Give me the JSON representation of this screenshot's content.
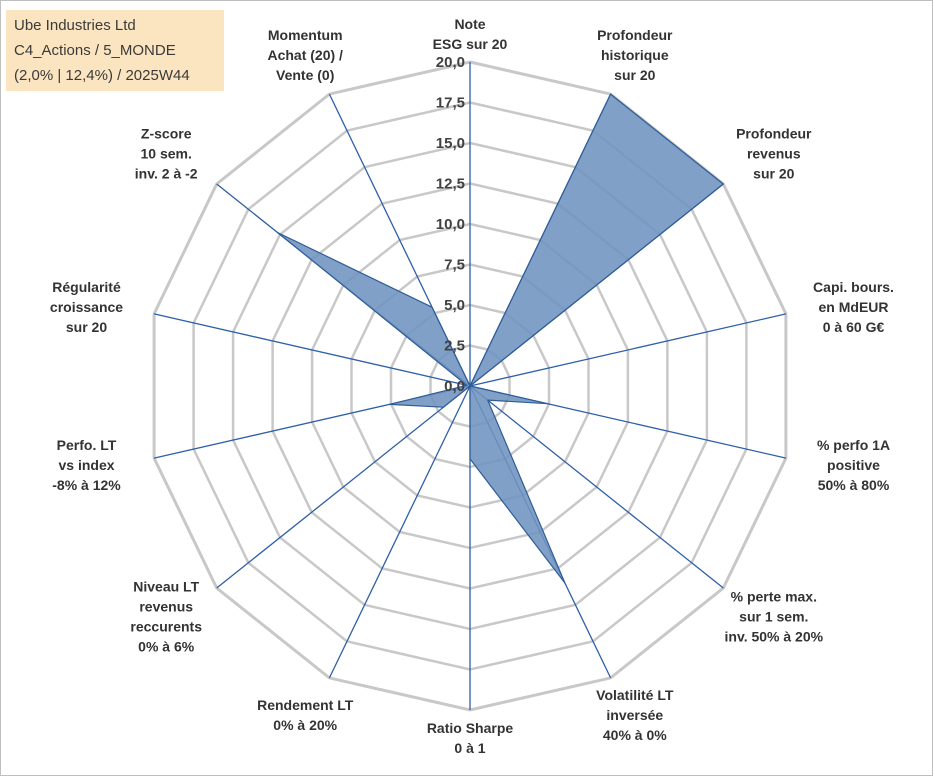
{
  "info_box": {
    "line1": "Ube Industries Ltd",
    "line2": "C4_Actions / 5_MONDE",
    "line3": "(2,0% | 12,4%) / 2025W44"
  },
  "chart_data": {
    "type": "radar",
    "title": "",
    "axis_range": [
      0,
      20
    ],
    "tick_step": 2.5,
    "tick_labels": [
      "0,0",
      "2,5",
      "5,0",
      "7,5",
      "10,0",
      "12,5",
      "15,0",
      "17,5",
      "20,0"
    ],
    "grid": true,
    "fill_color": "#6f93bf",
    "fill_edge_color": "#2f5d97",
    "spoke_color": "#2e5fa8",
    "grid_color": "#c8c8c8",
    "axes": [
      {
        "label": [
          "Note",
          "ESG sur 20"
        ],
        "value": 0
      },
      {
        "label": [
          "Profondeur",
          "historique",
          "sur 20"
        ],
        "value": 20
      },
      {
        "label": [
          "Profondeur",
          "revenus",
          "sur 20"
        ],
        "value": 20
      },
      {
        "label": [
          "Capi. bours.",
          "en MdEUR",
          "0 à 60 G€"
        ],
        "value": 0
      },
      {
        "label": [
          "% perfo 1A",
          "positive",
          "50% à 80%"
        ],
        "value": 4.9
      },
      {
        "label": [
          "% perte max.",
          "sur 1 sem.",
          "inv. 50% à 20%"
        ],
        "value": 1.4
      },
      {
        "label": [
          "Volatilité LT",
          "inversée",
          "40% à 0%"
        ],
        "value": 13.5
      },
      {
        "label": [
          "Ratio Sharpe",
          "0 à 1"
        ],
        "value": 4.5
      },
      {
        "label": [
          "Rendement LT",
          "0% à 20%"
        ],
        "value": 0
      },
      {
        "label": [
          "Niveau LT",
          "revenus",
          "reccurents",
          "0% à 6%"
        ],
        "value": 2.1
      },
      {
        "label": [
          "Perfo. LT",
          "vs index",
          "-8% à 12%"
        ],
        "value": 5.1
      },
      {
        "label": [
          "Régularité",
          "croissance",
          "sur 20"
        ],
        "value": 0.2
      },
      {
        "label": [
          "Z-score",
          "10 sem.",
          "inv. 2 à -2"
        ],
        "value": 15.2
      },
      {
        "label": [
          "Momentum",
          "Achat (20) /",
          "Vente (0)"
        ],
        "value": 5.4
      }
    ]
  }
}
